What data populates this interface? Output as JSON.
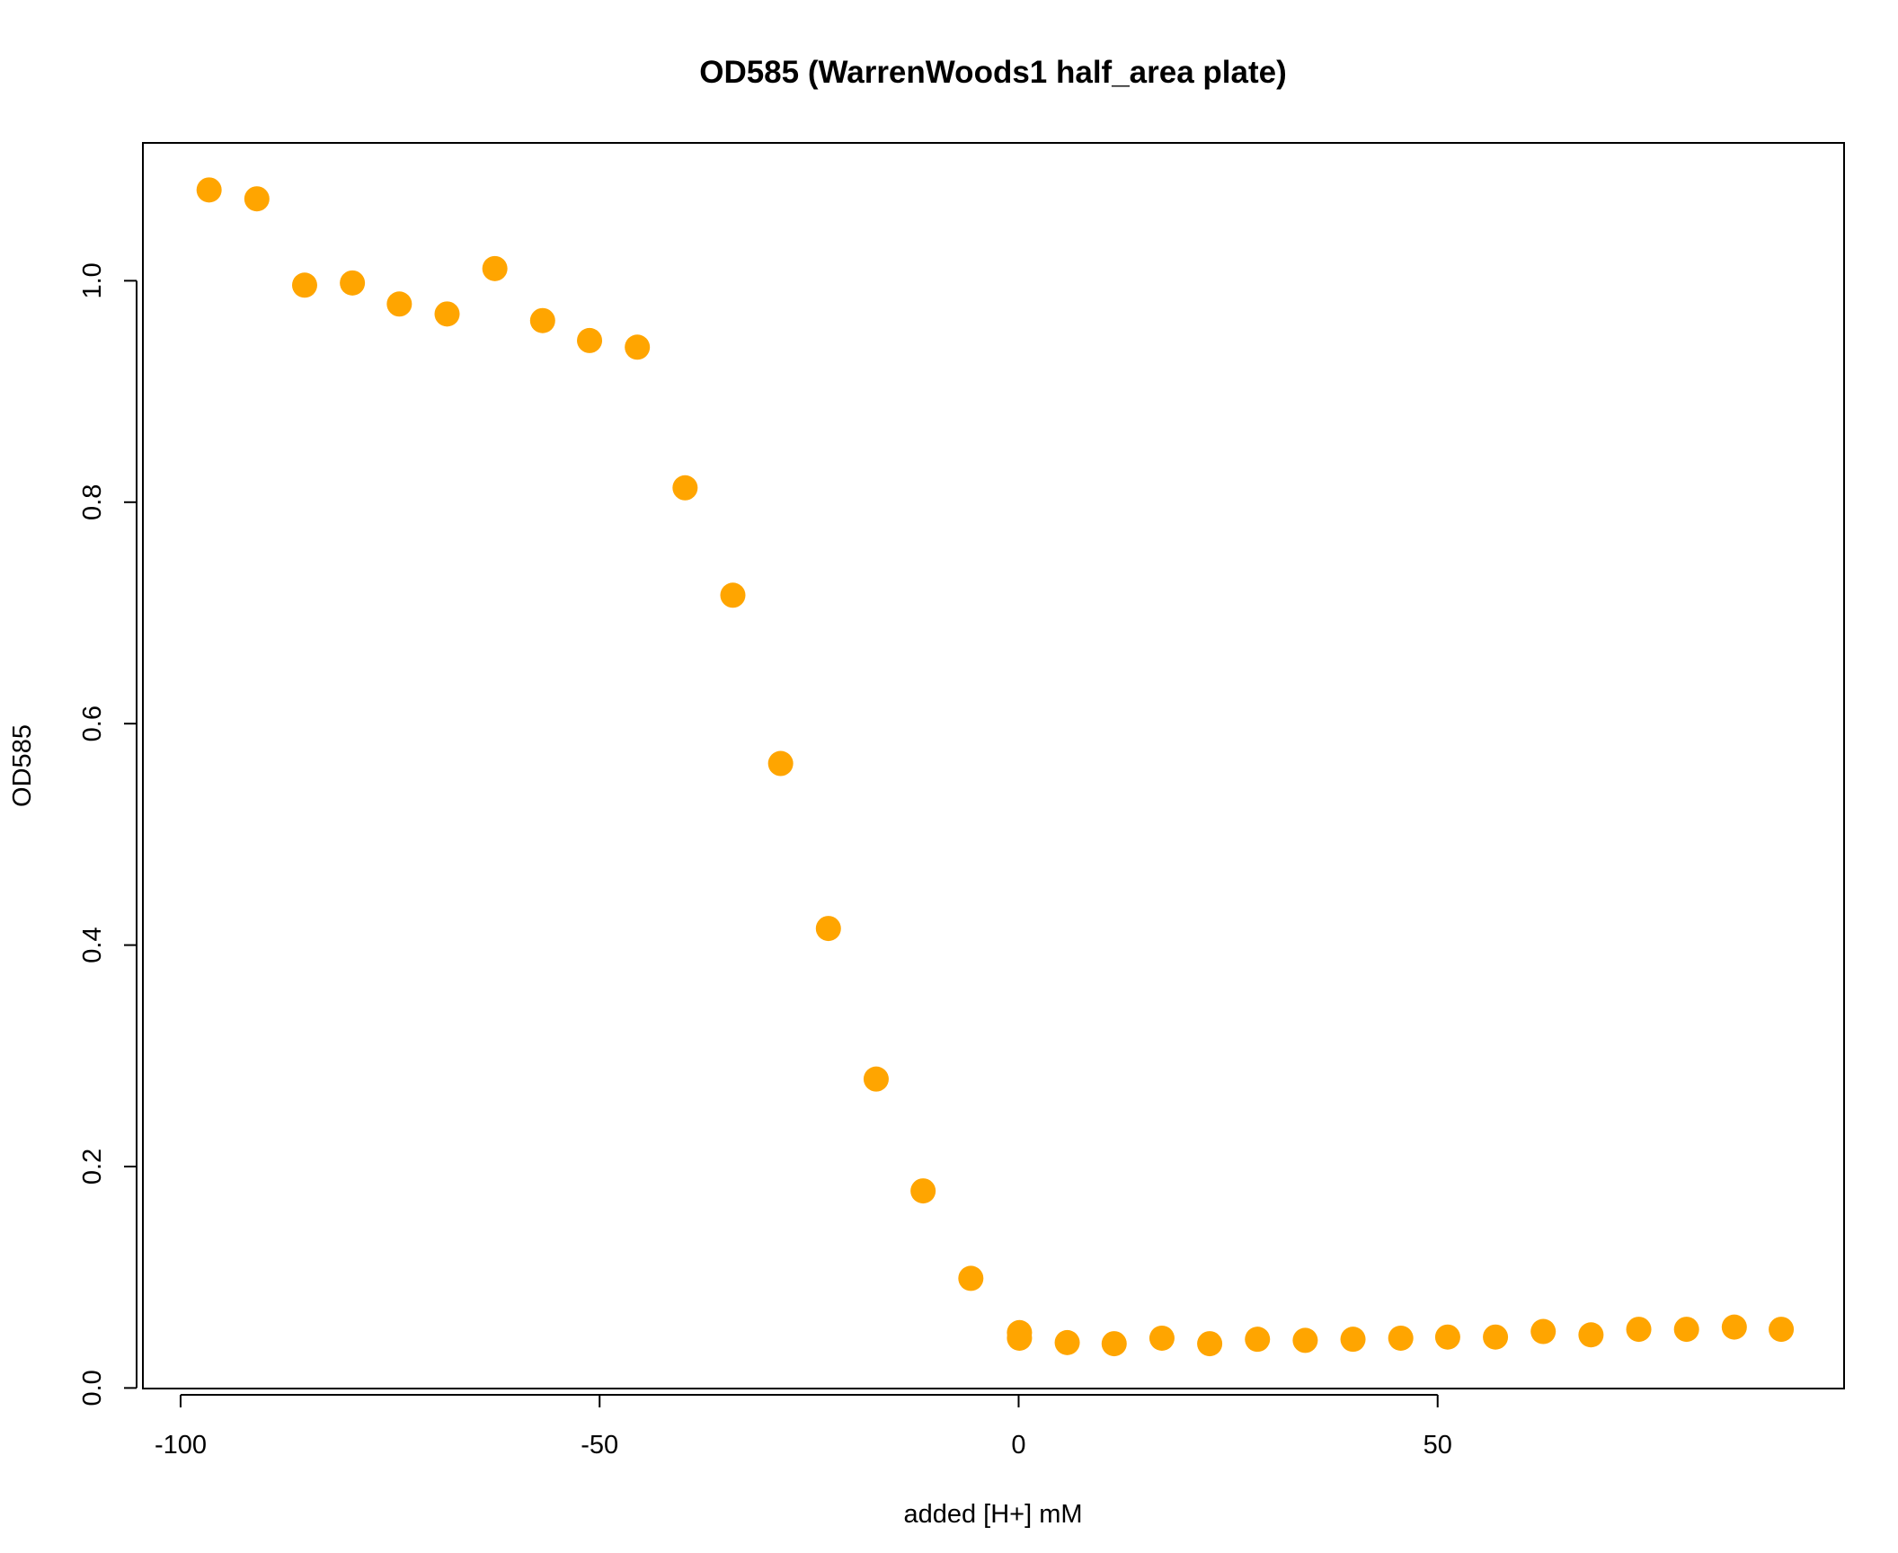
{
  "chart_data": {
    "type": "scatter",
    "title": "OD585 (WarrenWoods1 half_area plate)",
    "xlabel": "added [H+] mM",
    "ylabel": "OD585",
    "xlim": [
      -104.5,
      98.5
    ],
    "ylim": [
      -0.0005,
      1.1245
    ],
    "x_ticks": [
      -100,
      -50,
      0,
      50
    ],
    "x_tick_labels": [
      "-100",
      "-50",
      "0",
      "50"
    ],
    "y_ticks": [
      0.0,
      0.2,
      0.4,
      0.6,
      0.8,
      1.0
    ],
    "y_tick_labels": [
      "0.0",
      "0.2",
      "0.4",
      "0.6",
      "0.8",
      "1.0"
    ],
    "grid": false,
    "marker_color": "#FFA500",
    "series": [
      {
        "points": [
          [
            -96.6,
            1.082
          ],
          [
            -90.9,
            1.074
          ],
          [
            -85.2,
            0.996
          ],
          [
            -79.5,
            0.998
          ],
          [
            -73.9,
            0.979
          ],
          [
            -68.2,
            0.97
          ],
          [
            -62.5,
            1.011
          ],
          [
            -56.8,
            0.964
          ],
          [
            -51.2,
            0.946
          ],
          [
            -45.5,
            0.94
          ],
          [
            -39.8,
            0.813
          ],
          [
            -34.1,
            0.716
          ],
          [
            -28.4,
            0.564
          ],
          [
            -22.7,
            0.415
          ],
          [
            -17.0,
            0.279
          ],
          [
            -11.4,
            0.178
          ],
          [
            -5.7,
            0.099
          ],
          [
            0.1,
            0.05
          ],
          [
            0.1,
            0.045
          ],
          [
            5.8,
            0.041
          ],
          [
            11.4,
            0.04
          ],
          [
            17.1,
            0.045
          ],
          [
            22.8,
            0.04
          ],
          [
            28.5,
            0.044
          ],
          [
            34.2,
            0.043
          ],
          [
            39.9,
            0.044
          ],
          [
            45.6,
            0.045
          ],
          [
            51.2,
            0.046
          ],
          [
            56.9,
            0.046
          ],
          [
            62.6,
            0.051
          ],
          [
            68.3,
            0.048
          ],
          [
            74.0,
            0.053
          ],
          [
            79.7,
            0.053
          ],
          [
            85.4,
            0.055
          ],
          [
            91.0,
            0.053
          ]
        ]
      }
    ]
  }
}
